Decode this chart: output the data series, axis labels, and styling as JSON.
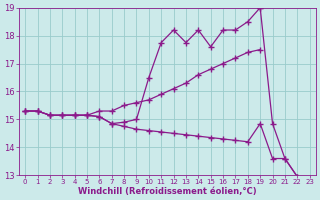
{
  "x_values": [
    0,
    1,
    2,
    3,
    4,
    5,
    6,
    7,
    8,
    9,
    10,
    11,
    12,
    13,
    14,
    15,
    16,
    17,
    18,
    19,
    20,
    21,
    22,
    23
  ],
  "line1_zigzag": [
    15.3,
    15.3,
    15.15,
    15.15,
    15.15,
    15.15,
    15.1,
    14.85,
    14.9,
    15.0,
    16.5,
    17.75,
    18.2,
    17.75,
    18.2,
    17.6,
    18.2,
    18.2,
    18.5,
    19.0,
    null,
    null,
    null,
    null
  ],
  "line2_rising": [
    15.3,
    15.3,
    15.15,
    15.15,
    15.15,
    15.15,
    15.3,
    15.3,
    15.5,
    15.6,
    15.7,
    15.9,
    16.1,
    16.3,
    16.6,
    16.8,
    17.0,
    17.2,
    17.4,
    17.5,
    null,
    null,
    null,
    null
  ],
  "line3_falling": [
    15.3,
    15.3,
    15.15,
    15.15,
    15.15,
    15.15,
    15.1,
    14.85,
    14.75,
    14.65,
    14.6,
    14.55,
    14.5,
    14.45,
    14.4,
    14.35,
    14.3,
    14.25,
    14.2,
    14.85,
    13.6,
    13.6,
    12.95,
    12.85
  ],
  "line_end": [
    19.0,
    14.85,
    13.6,
    12.95,
    12.85
  ],
  "line_end_x": [
    19,
    20,
    21,
    22,
    23
  ],
  "line_color": "#8b1a8b",
  "bg_color": "#cceaea",
  "grid_color": "#99cccc",
  "xlabel": "Windchill (Refroidissement éolien,°C)",
  "ylim": [
    13,
    19
  ],
  "xlim": [
    -0.5,
    23.5
  ],
  "yticks": [
    13,
    14,
    15,
    16,
    17,
    18,
    19
  ],
  "xticks": [
    0,
    1,
    2,
    3,
    4,
    5,
    6,
    7,
    8,
    9,
    10,
    11,
    12,
    13,
    14,
    15,
    16,
    17,
    18,
    19,
    20,
    21,
    22,
    23
  ]
}
